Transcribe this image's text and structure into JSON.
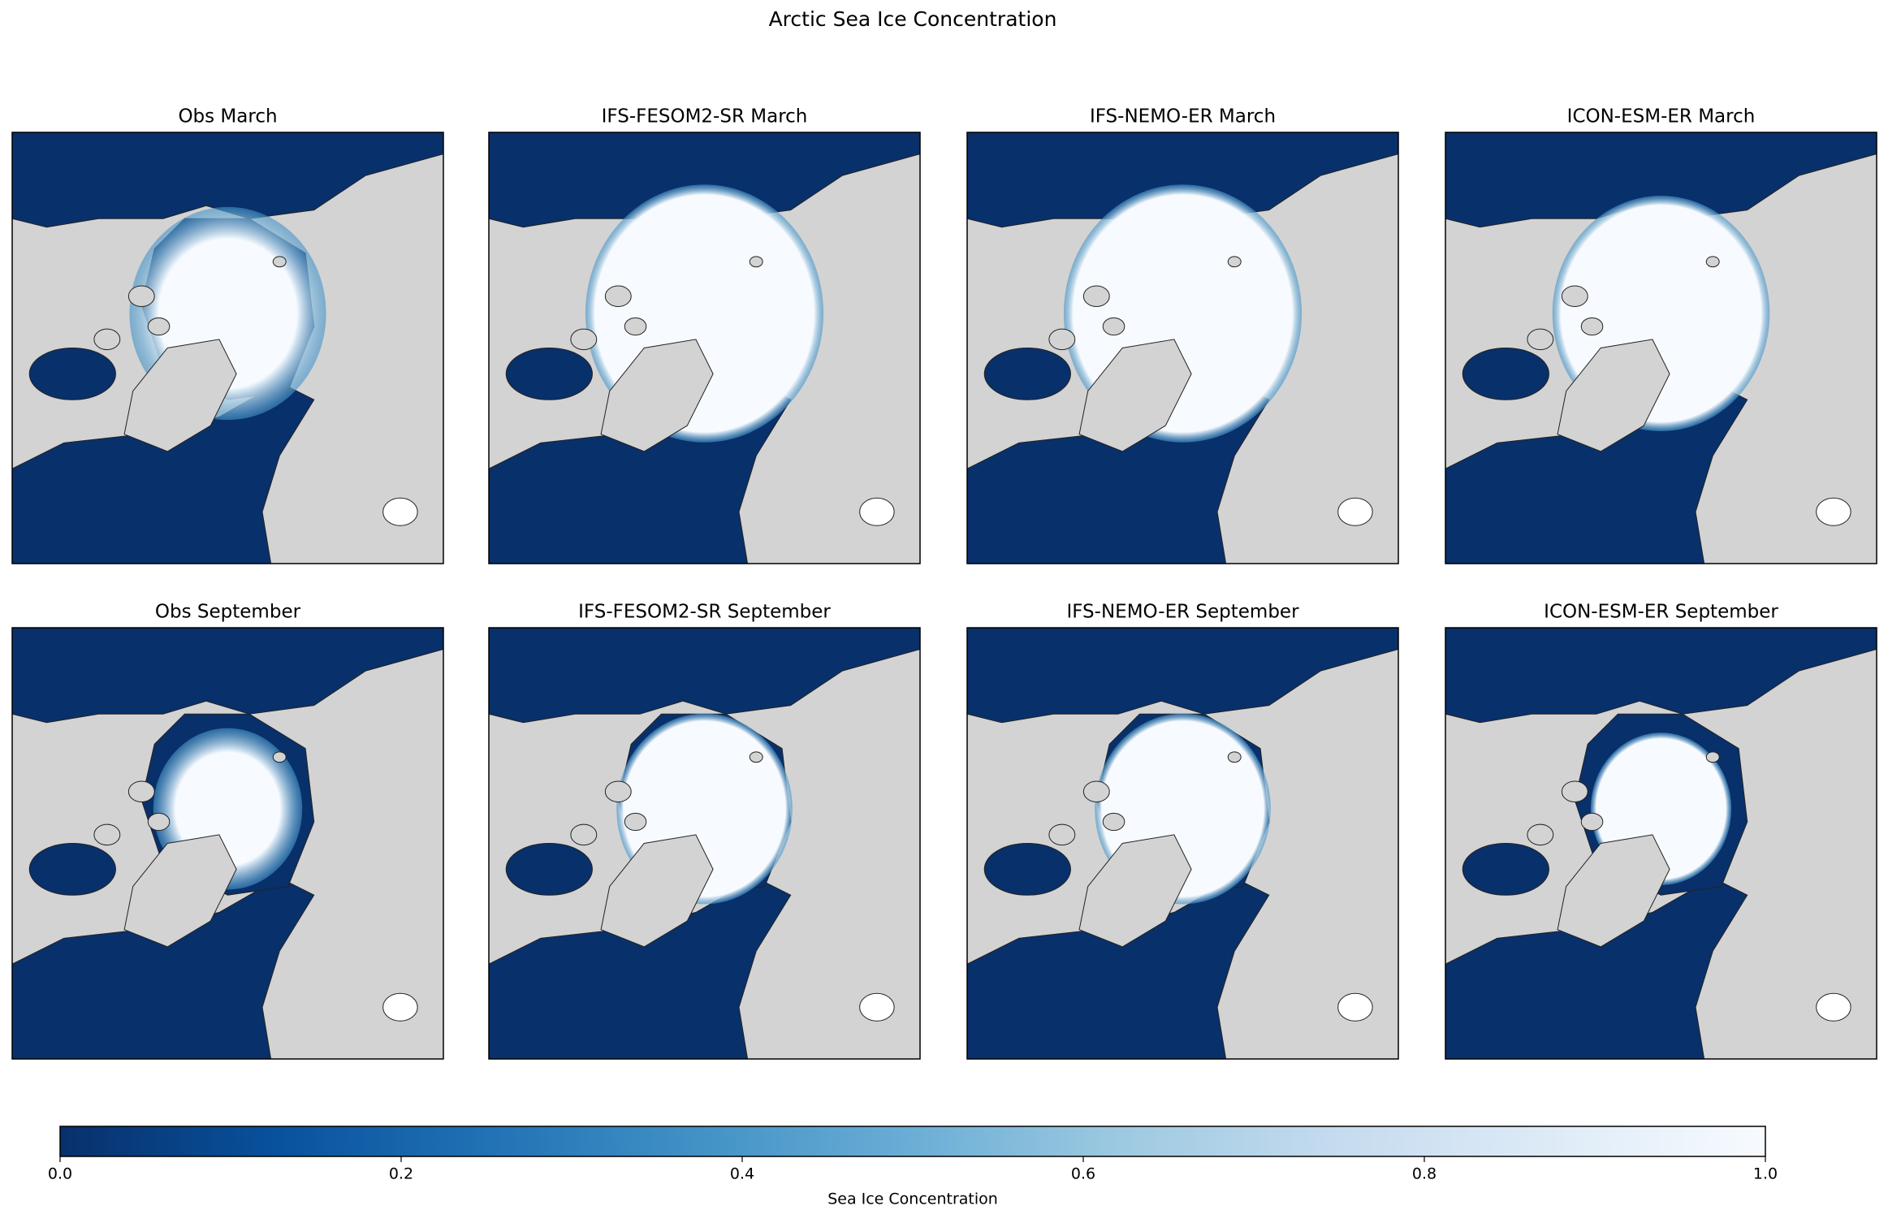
{
  "title": "Arctic Sea Ice Concentration",
  "panels": [
    {
      "title": "Obs March"
    },
    {
      "title": "IFS-FESOM2-SR March"
    },
    {
      "title": "IFS-NEMO-ER March"
    },
    {
      "title": "ICON-ESM-ER March"
    },
    {
      "title": "Obs September"
    },
    {
      "title": "IFS-FESOM2-SR September"
    },
    {
      "title": "IFS-NEMO-ER September"
    },
    {
      "title": "ICON-ESM-ER September"
    }
  ],
  "colorbar": {
    "label": "Sea Ice Concentration",
    "lim": [
      0,
      1
    ],
    "ticks": [
      {
        "value": 0,
        "label": "0.0"
      },
      {
        "value": 0.2,
        "label": "0.2"
      },
      {
        "value": 0.4,
        "label": "0.4"
      },
      {
        "value": 0.6,
        "label": "0.6"
      },
      {
        "value": 0.8,
        "label": "0.8"
      },
      {
        "value": 1,
        "label": "1.0"
      }
    ],
    "colormap": [
      "#08306b",
      "#08519c",
      "#2171b5",
      "#4292c6",
      "#6baed6",
      "#9ecae1",
      "#c6dbef",
      "#deebf7",
      "#f7fbff"
    ]
  }
}
